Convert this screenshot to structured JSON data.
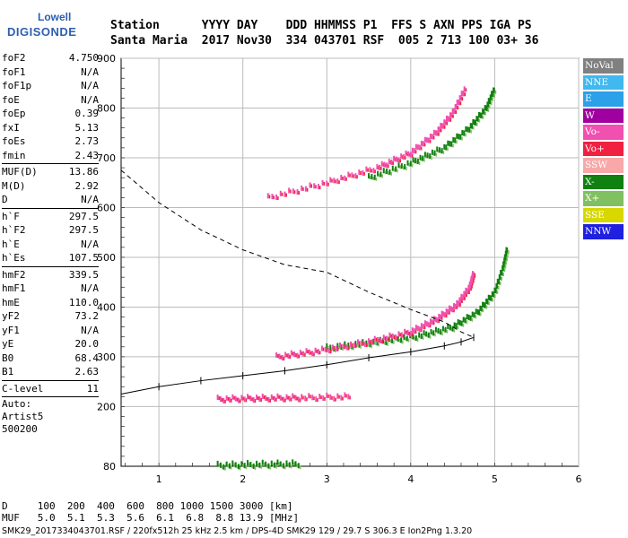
{
  "logo": {
    "line1": "Lowell",
    "line2": "DIGISONDE"
  },
  "header": {
    "labels": "Station      YYYY DAY    DDD HHMMSS P1  FFS S AXN PPS IGA PS",
    "values": "Santa Maria  2017 Nov30  334 043701 RSF  005 2 713 100 03+ 36"
  },
  "params_group1": [
    {
      "name": "foF2",
      "value": "4.750"
    },
    {
      "name": "foF1",
      "value": "N/A"
    },
    {
      "name": "foF1p",
      "value": "N/A"
    },
    {
      "name": "foE",
      "value": "N/A"
    },
    {
      "name": "foEp",
      "value": "0.39"
    },
    {
      "name": "fxI",
      "value": "5.13"
    },
    {
      "name": "foEs",
      "value": "2.73"
    },
    {
      "name": "fmin",
      "value": "2.43"
    }
  ],
  "params_group2": [
    {
      "name": "MUF(D)",
      "value": "13.86"
    },
    {
      "name": "M(D)",
      "value": "2.92"
    },
    {
      "name": "D",
      "value": "N/A"
    }
  ],
  "params_group3": [
    {
      "name": "h`F",
      "value": "297.5"
    },
    {
      "name": "h`F2",
      "value": "297.5"
    },
    {
      "name": "h`E",
      "value": "N/A"
    },
    {
      "name": "h`Es",
      "value": "107.5"
    }
  ],
  "params_group4": [
    {
      "name": "hmF2",
      "value": "339.5"
    },
    {
      "name": "hmF1",
      "value": "N/A"
    },
    {
      "name": "hmE",
      "value": "110.0"
    },
    {
      "name": "yF2",
      "value": "73.2"
    },
    {
      "name": "yF1",
      "value": "N/A"
    },
    {
      "name": "yE",
      "value": "20.0"
    },
    {
      "name": "B0",
      "value": "68.4"
    },
    {
      "name": "B1",
      "value": "2.63"
    }
  ],
  "params_group5": [
    {
      "name": "C-level",
      "value": "11"
    }
  ],
  "auto": {
    "line1": "Auto:",
    "line2": "Artist5",
    "line3": "500200"
  },
  "legend": [
    {
      "label": "NoVal",
      "color": "#808080"
    },
    {
      "label": "NNE",
      "color": "#40b8f0"
    },
    {
      "label": "E",
      "color": "#2ca0e8"
    },
    {
      "label": "W",
      "color": "#a000a0"
    },
    {
      "label": "Vo-",
      "color": "#f050b0"
    },
    {
      "label": "Vo+",
      "color": "#f02040"
    },
    {
      "label": "SSW",
      "color": "#f8a8a8"
    },
    {
      "label": "X-",
      "color": "#108010"
    },
    {
      "label": "X+",
      "color": "#80c060"
    },
    {
      "label": "SSE",
      "color": "#d8d800"
    },
    {
      "label": "NNW",
      "color": "#2020e0"
    }
  ],
  "bottom": {
    "line1": "D     100  200  400  600  800 1000 1500 3000 [km]",
    "line2": "MUF   5.0  5.1  5.3  5.6  6.1  6.8  8.8 13.9 [MHz]"
  },
  "footer": "SMK29_2017334043701.RSF / 220fx512h 25 kHz 2.5 km / DPS-4D SMK29 129 / 29.7 S 306.3 E Ion2Png 1.3.20",
  "chart_data": {
    "type": "scatter",
    "xlabel": "",
    "ylabel": "",
    "xlim": [
      0.55,
      6.0
    ],
    "ylim": [
      80,
      900
    ],
    "x_ticks": [
      1,
      2,
      3,
      4,
      5,
      6
    ],
    "y_ticks": [
      80,
      200,
      300,
      400,
      500,
      600,
      700,
      800,
      900
    ],
    "grid": true,
    "echo_traces": [
      {
        "mode": "X-",
        "points": [
          [
            3.0,
            318
          ],
          [
            3.6,
            330
          ],
          [
            4.1,
            342
          ],
          [
            4.5,
            360
          ],
          [
            4.8,
            390
          ],
          [
            5.0,
            430
          ],
          [
            5.1,
            480
          ],
          [
            5.15,
            520
          ]
        ]
      },
      {
        "mode": "Vo-",
        "points": [
          [
            2.4,
            300
          ],
          [
            2.9,
            312
          ],
          [
            3.5,
            330
          ],
          [
            4.0,
            350
          ],
          [
            4.3,
            375
          ],
          [
            4.55,
            405
          ],
          [
            4.7,
            440
          ],
          [
            4.75,
            470
          ]
        ]
      },
      {
        "mode": "Vo-",
        "points": [
          [
            2.3,
            620
          ],
          [
            3.0,
            650
          ],
          [
            3.6,
            680
          ],
          [
            4.0,
            710
          ],
          [
            4.3,
            750
          ],
          [
            4.5,
            790
          ],
          [
            4.65,
            840
          ]
        ]
      },
      {
        "mode": "X-",
        "points": [
          [
            3.5,
            660
          ],
          [
            4.0,
            690
          ],
          [
            4.4,
            720
          ],
          [
            4.7,
            760
          ],
          [
            4.9,
            800
          ],
          [
            5.0,
            840
          ]
        ]
      },
      {
        "mode": "Vo-",
        "points": [
          [
            1.7,
            215
          ],
          [
            2.2,
            217
          ],
          [
            2.7,
            218
          ],
          [
            3.3,
            220
          ]
        ]
      },
      {
        "mode": "X-",
        "points": [
          [
            1.7,
            82
          ],
          [
            2.2,
            84
          ],
          [
            2.7,
            85
          ]
        ]
      }
    ],
    "profile_solid": [
      [
        0.55,
        225
      ],
      [
        1.0,
        240
      ],
      [
        1.5,
        252
      ],
      [
        2.0,
        262
      ],
      [
        2.5,
        272
      ],
      [
        3.0,
        284
      ],
      [
        3.5,
        298
      ],
      [
        4.0,
        310
      ],
      [
        4.4,
        322
      ],
      [
        4.6,
        330
      ],
      [
        4.75,
        339
      ]
    ],
    "profile_dashed": [
      [
        0.55,
        675
      ],
      [
        1.0,
        610
      ],
      [
        1.5,
        555
      ],
      [
        2.0,
        515
      ],
      [
        2.5,
        485
      ],
      [
        3.0,
        470
      ],
      [
        3.5,
        430
      ],
      [
        4.0,
        395
      ],
      [
        4.4,
        370
      ],
      [
        4.6,
        350
      ],
      [
        4.75,
        339
      ]
    ]
  }
}
